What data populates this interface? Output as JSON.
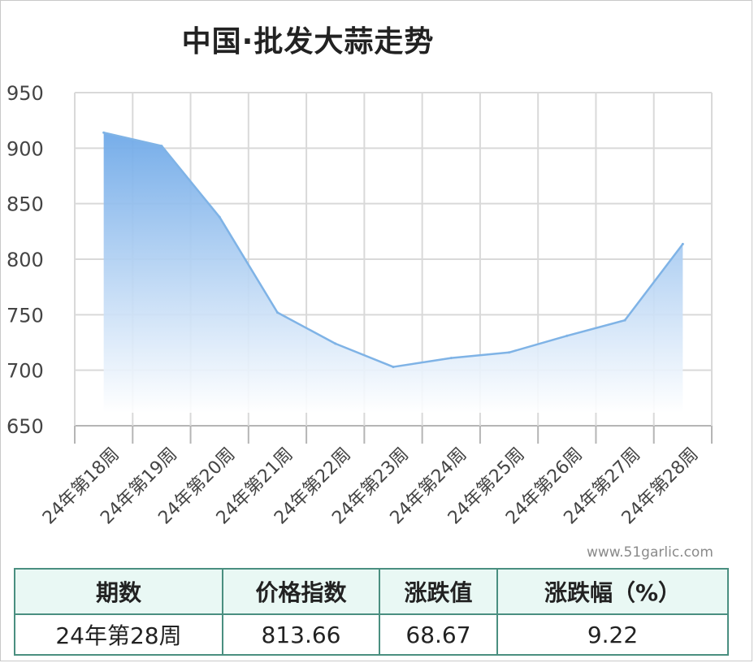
{
  "chart_data": {
    "type": "area",
    "title": "中国·批发大蒜走势",
    "categories": [
      "24年第18周",
      "24年第19周",
      "24年第20周",
      "24年第21周",
      "24年第22周",
      "24年第23周",
      "24年第24周",
      "24年第25周",
      "24年第26周",
      "24年第27周",
      "24年第28周"
    ],
    "series": [
      {
        "values": [
          914,
          902,
          838,
          752,
          724,
          703,
          711,
          716,
          731,
          745,
          813.66
        ]
      }
    ],
    "ylim": [
      650,
      950
    ],
    "yticks": [
      650,
      700,
      750,
      800,
      850,
      900,
      950
    ],
    "grid": true,
    "colors": {
      "line": "#7fb3e6",
      "fill_top": "#6fa9e8",
      "fill_bottom": "#ffffff",
      "grid": "#d9d9d9"
    }
  },
  "watermark": "www.51garlic.com",
  "table": {
    "headers": [
      "期数",
      "价格指数",
      "涨跌值",
      "涨跌幅（%）"
    ],
    "row": [
      "24年第28周",
      "813.66",
      "68.67",
      "9.22"
    ]
  }
}
